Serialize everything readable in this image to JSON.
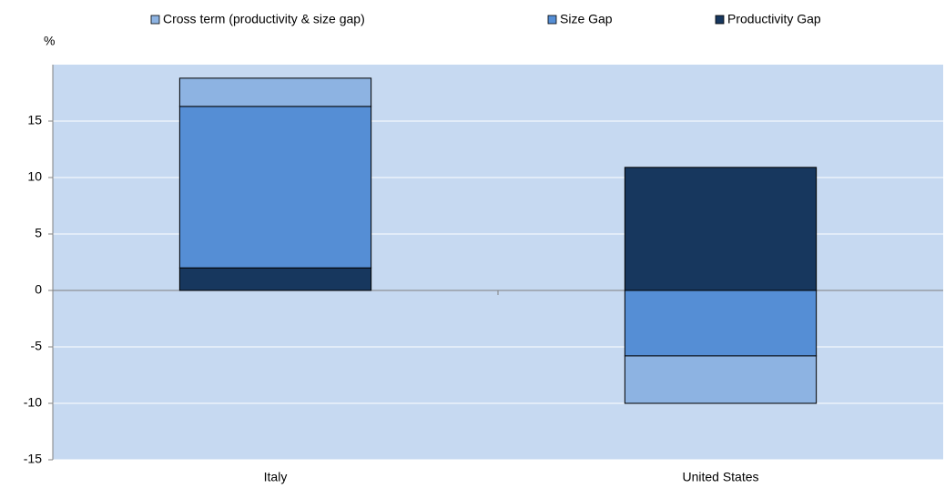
{
  "chart_data": {
    "type": "stacked_bar",
    "ylabel": "%",
    "categories": [
      "Italy",
      "United States"
    ],
    "series": [
      {
        "name": "Cross term (productivity & size gap)",
        "color": "#8db3e2",
        "values": [
          2.5,
          -4.2
        ]
      },
      {
        "name": "Size Gap",
        "color": "#558ed5",
        "values": [
          14.3,
          -5.8
        ]
      },
      {
        "name": "Productivity Gap",
        "color": "#17375e",
        "values": [
          2.0,
          10.9
        ]
      }
    ],
    "ylim": [
      -15,
      20
    ],
    "yticks": [
      -15,
      -10,
      -5,
      0,
      5,
      10,
      15
    ],
    "grid": true,
    "legend": "top"
  }
}
